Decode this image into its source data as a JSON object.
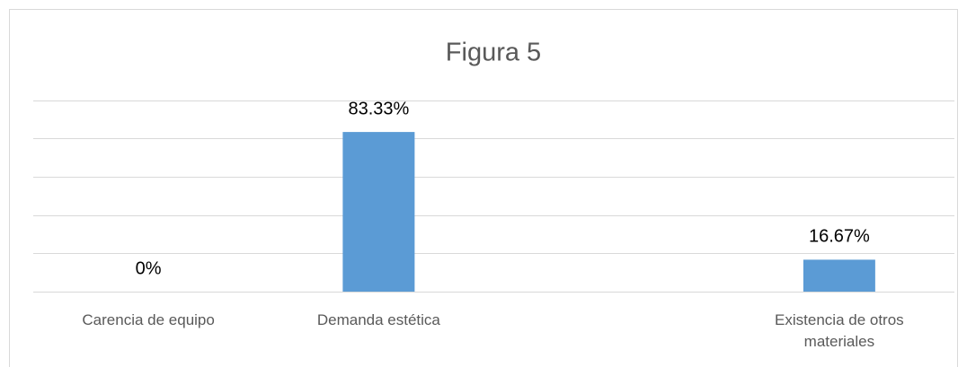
{
  "chart_data": {
    "type": "bar",
    "title": "Figura 5",
    "categories": [
      "Carencia de equipo",
      "Demanda estética",
      null,
      "Existencia de otros materiales"
    ],
    "values": [
      0,
      83.33,
      null,
      16.67
    ],
    "value_labels": [
      "0%",
      "83.33%",
      null,
      "16.67%"
    ],
    "color": "#5b9bd5",
    "ylim": [
      0,
      100
    ],
    "yticks": [
      0,
      20,
      40,
      60,
      80,
      100
    ],
    "grid": true
  }
}
